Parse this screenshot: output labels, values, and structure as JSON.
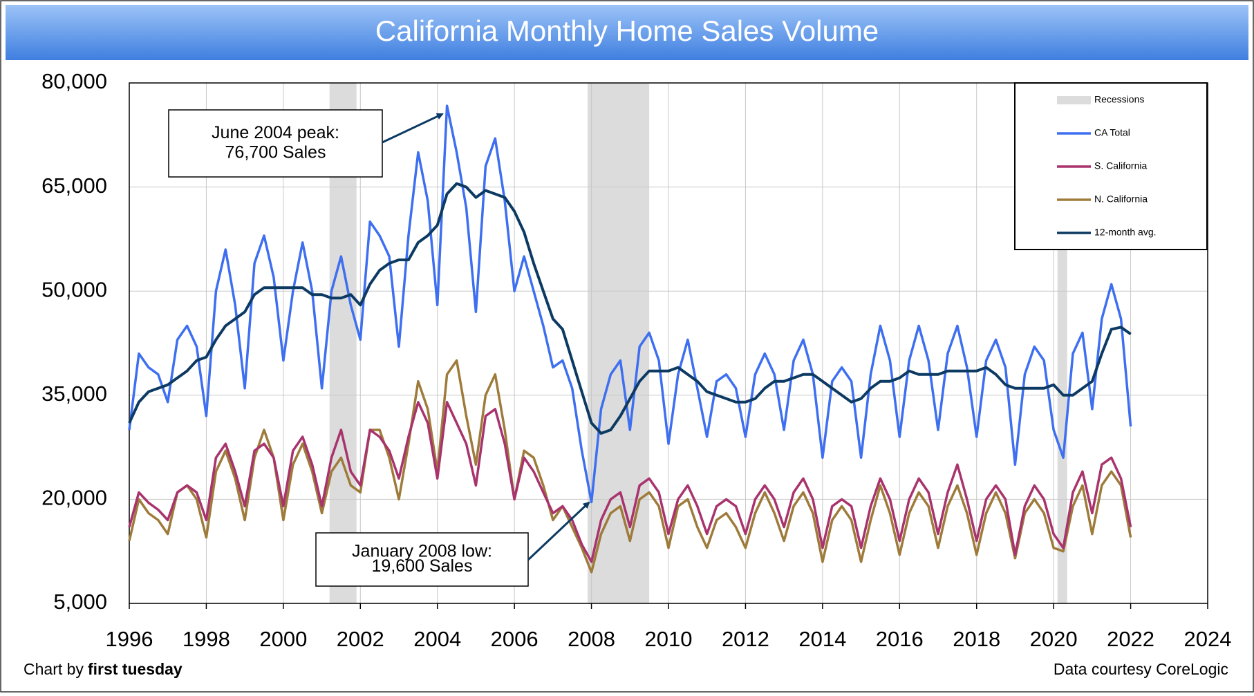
{
  "chart_data": {
    "type": "line",
    "title": "California Monthly Home Sales Volume",
    "credit": {
      "prefix": "Chart by",
      "name": "first tuesday"
    },
    "source": "Data courtesy CoreLogic",
    "xlim": [
      1996,
      2024
    ],
    "xticks": [
      1996,
      1998,
      2000,
      2002,
      2004,
      2006,
      2008,
      2010,
      2012,
      2014,
      2016,
      2018,
      2020,
      2022,
      2024
    ],
    "ylim": [
      5000,
      80000
    ],
    "yticks": [
      {
        "value": 5000,
        "label": "5,000"
      },
      {
        "value": 20000,
        "label": "20,000"
      },
      {
        "value": 35000,
        "label": "35,000"
      },
      {
        "value": 50000,
        "label": "50,000"
      },
      {
        "value": 65000,
        "label": "65,000"
      },
      {
        "value": 80000,
        "label": "80,000"
      }
    ],
    "grid": true,
    "legend": "upper right",
    "recessions": {
      "name": "Recessions",
      "color": "#dcdcdc",
      "ranges": [
        [
          2001.2,
          2001.9
        ],
        [
          2007.9,
          2009.5
        ],
        [
          2020.1,
          2020.35
        ]
      ]
    },
    "x": [
      1996,
      1996.25,
      1996.5,
      1996.75,
      1997,
      1997.25,
      1997.5,
      1997.75,
      1998,
      1998.25,
      1998.5,
      1998.75,
      1999,
      1999.25,
      1999.5,
      1999.75,
      2000,
      2000.25,
      2000.5,
      2000.75,
      2001,
      2001.25,
      2001.5,
      2001.75,
      2002,
      2002.25,
      2002.5,
      2002.75,
      2003,
      2003.25,
      2003.5,
      2003.75,
      2004,
      2004.25,
      2004.5,
      2004.75,
      2005,
      2005.25,
      2005.5,
      2005.75,
      2006,
      2006.25,
      2006.5,
      2006.75,
      2007,
      2007.25,
      2007.5,
      2007.75,
      2008,
      2008.25,
      2008.5,
      2008.75,
      2009,
      2009.25,
      2009.5,
      2009.75,
      2010,
      2010.25,
      2010.5,
      2010.75,
      2011,
      2011.25,
      2011.5,
      2011.75,
      2012,
      2012.25,
      2012.5,
      2012.75,
      2013,
      2013.25,
      2013.5,
      2013.75,
      2014,
      2014.25,
      2014.5,
      2014.75,
      2015,
      2015.25,
      2015.5,
      2015.75,
      2016,
      2016.25,
      2016.5,
      2016.75,
      2017,
      2017.25,
      2017.5,
      2017.75,
      2018,
      2018.25,
      2018.5,
      2018.75,
      2019,
      2019.25,
      2019.5,
      2019.75,
      2020,
      2020.25,
      2020.5,
      2020.75,
      2021,
      2021.25,
      2021.5,
      2021.75,
      2022
    ],
    "series": [
      {
        "name": "CA Total",
        "color": "#3d6ff0",
        "values": [
          30000,
          41000,
          39000,
          38000,
          34000,
          43000,
          45000,
          42000,
          32000,
          50000,
          56000,
          48000,
          36000,
          54000,
          58000,
          52000,
          40000,
          50000,
          57000,
          50000,
          36000,
          50000,
          55000,
          48000,
          43000,
          60000,
          58000,
          55000,
          42000,
          58000,
          70000,
          63000,
          48000,
          76700,
          70000,
          62000,
          47000,
          68000,
          72000,
          63000,
          50000,
          55000,
          50000,
          45000,
          39000,
          40000,
          36000,
          27000,
          19600,
          33000,
          38000,
          40000,
          30000,
          42000,
          44000,
          40000,
          28000,
          38000,
          43000,
          36000,
          29000,
          37000,
          38000,
          36000,
          29000,
          38000,
          41000,
          38000,
          30000,
          40000,
          43000,
          38000,
          26000,
          37000,
          39000,
          37000,
          26000,
          38000,
          45000,
          40000,
          29000,
          40000,
          45000,
          40000,
          30000,
          41000,
          45000,
          39000,
          29000,
          40000,
          43000,
          39000,
          25000,
          38000,
          42000,
          40000,
          30000,
          26000,
          41000,
          44000,
          33000,
          46000,
          51000,
          46000,
          30500
        ]
      },
      {
        "name": "S. California",
        "color": "#a8336d",
        "values": [
          16000,
          21000,
          19500,
          18500,
          17000,
          21000,
          22000,
          21000,
          17000,
          26000,
          28000,
          24000,
          19000,
          27000,
          28000,
          26000,
          19000,
          27000,
          29000,
          25000,
          19000,
          26000,
          30000,
          24000,
          22000,
          30000,
          29000,
          27000,
          23000,
          29000,
          34000,
          31000,
          23000,
          34000,
          31000,
          28000,
          22000,
          32000,
          33000,
          28000,
          20000,
          26000,
          24000,
          21000,
          18000,
          19000,
          17000,
          13500,
          11000,
          17000,
          20000,
          21000,
          16000,
          22000,
          23000,
          21000,
          15000,
          20000,
          22000,
          19000,
          15000,
          19000,
          20000,
          19000,
          15000,
          20000,
          22000,
          20000,
          16000,
          21000,
          23000,
          20000,
          13000,
          19000,
          20000,
          19000,
          13000,
          19000,
          23000,
          20000,
          14000,
          20000,
          23000,
          21000,
          15000,
          21000,
          25000,
          20000,
          14000,
          20000,
          22000,
          20000,
          12000,
          19000,
          22000,
          20000,
          15000,
          13000,
          21000,
          24000,
          18000,
          25000,
          26000,
          23000,
          16000
        ]
      },
      {
        "name": "N. California",
        "color": "#9e7b3a",
        "values": [
          14000,
          20000,
          18000,
          17000,
          15000,
          21000,
          22000,
          20000,
          14500,
          24000,
          27000,
          23000,
          17000,
          26000,
          30000,
          26000,
          17000,
          25000,
          28000,
          24000,
          18000,
          24000,
          26000,
          22000,
          21000,
          30000,
          30000,
          26000,
          20000,
          28000,
          37000,
          33000,
          24000,
          38000,
          40000,
          32000,
          25000,
          35000,
          38000,
          30000,
          20000,
          27000,
          26000,
          22000,
          17000,
          19000,
          16000,
          13000,
          9500,
          15000,
          18000,
          19000,
          14000,
          20000,
          21000,
          19000,
          13000,
          19000,
          20000,
          16000,
          13000,
          17000,
          18000,
          16000,
          13000,
          18000,
          21000,
          18000,
          14000,
          19000,
          21000,
          18000,
          11000,
          17000,
          19000,
          17000,
          11000,
          17000,
          22000,
          18000,
          12000,
          18000,
          21000,
          19000,
          13000,
          19000,
          22000,
          18000,
          12000,
          18000,
          21000,
          18000,
          11500,
          18000,
          20000,
          18000,
          13000,
          12500,
          19000,
          22000,
          15000,
          22000,
          24000,
          22000,
          14500
        ]
      },
      {
        "name": "12-month avg.",
        "color": "#0c3a62",
        "values": [
          31000,
          34000,
          35500,
          36000,
          36500,
          37500,
          38500,
          40000,
          40500,
          43000,
          45000,
          46000,
          47000,
          49500,
          50500,
          50500,
          50500,
          50500,
          50500,
          49500,
          49500,
          49000,
          49000,
          49500,
          48000,
          51000,
          53000,
          54000,
          54500,
          54500,
          57000,
          58000,
          59500,
          64000,
          65500,
          65000,
          63500,
          64500,
          64000,
          63500,
          61500,
          58500,
          54000,
          50000,
          46000,
          44500,
          40000,
          35500,
          31000,
          29500,
          30000,
          32000,
          34500,
          37000,
          38500,
          38500,
          38500,
          39000,
          38000,
          37000,
          35500,
          35000,
          34500,
          34000,
          34000,
          34500,
          36000,
          37000,
          37000,
          37500,
          38000,
          38000,
          37000,
          36000,
          35000,
          34000,
          34500,
          36000,
          37000,
          37000,
          37500,
          38500,
          38000,
          38000,
          38000,
          38500,
          38500,
          38500,
          38500,
          39000,
          38000,
          36500,
          36000,
          36000,
          36000,
          36000,
          36500,
          35000,
          35000,
          36000,
          37000,
          41000,
          44500,
          44800,
          43800
        ]
      }
    ],
    "annotations": [
      {
        "lines": [
          "June 2004 peak:",
          "76,700 Sales"
        ]
      },
      {
        "lines": [
          "January 2008 low:",
          "19,600 Sales"
        ]
      }
    ]
  }
}
